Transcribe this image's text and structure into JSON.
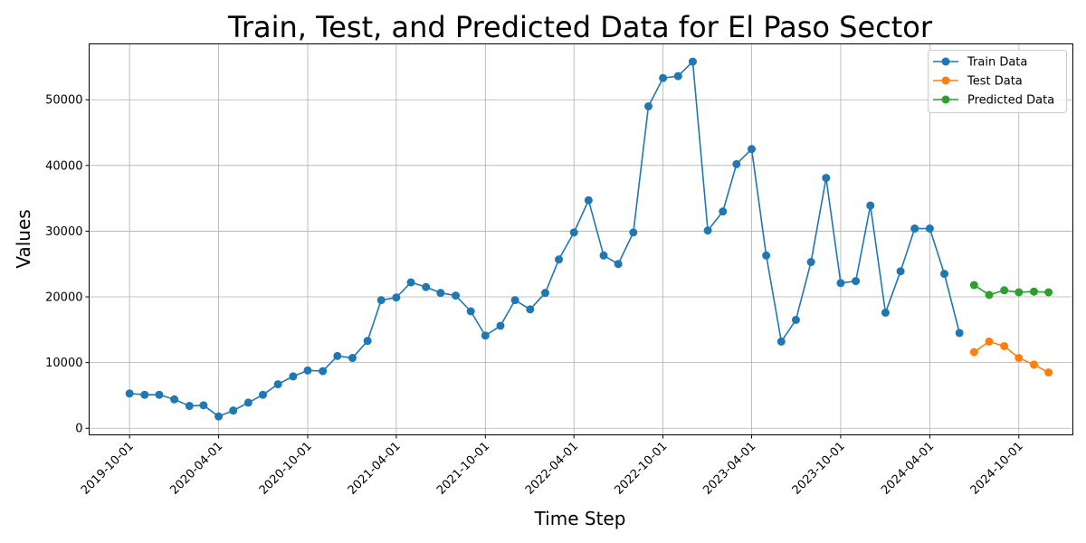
{
  "chart_data": {
    "type": "line",
    "title": "Train, Test, and Predicted Data for El Paso Sector",
    "xlabel": "Time Step",
    "ylabel": "Values",
    "x_tick_labels": [
      "2019-10-01",
      "2020-04-01",
      "2020-10-01",
      "2021-04-01",
      "2021-10-01",
      "2022-04-01",
      "2022-10-01",
      "2023-04-01",
      "2023-10-01",
      "2024-04-01",
      "2024-10-01"
    ],
    "y_ticks": [
      0,
      10000,
      20000,
      30000,
      40000,
      50000
    ],
    "ylim": [
      -1000,
      58500
    ],
    "xlim": [
      "2019-07-10",
      "2025-01-20"
    ],
    "grid": true,
    "legend_position": "top-right",
    "series": [
      {
        "name": "Train Data",
        "color": "#1f77b4",
        "x": [
          "2019-10-01",
          "2019-11-01",
          "2019-12-01",
          "2020-01-01",
          "2020-02-01",
          "2020-03-01",
          "2020-04-01",
          "2020-05-01",
          "2020-06-01",
          "2020-07-01",
          "2020-08-01",
          "2020-09-01",
          "2020-10-01",
          "2020-11-01",
          "2020-12-01",
          "2021-01-01",
          "2021-02-01",
          "2021-03-01",
          "2021-04-01",
          "2021-05-01",
          "2021-06-01",
          "2021-07-01",
          "2021-08-01",
          "2021-09-01",
          "2021-10-01",
          "2021-11-01",
          "2021-12-01",
          "2022-01-01",
          "2022-02-01",
          "2022-03-01",
          "2022-04-01",
          "2022-05-01",
          "2022-06-01",
          "2022-07-01",
          "2022-08-01",
          "2022-09-01",
          "2022-10-01",
          "2022-11-01",
          "2022-12-01",
          "2023-01-01",
          "2023-02-01",
          "2023-03-01",
          "2023-04-01",
          "2023-05-01",
          "2023-06-01",
          "2023-07-01",
          "2023-08-01",
          "2023-09-01",
          "2023-10-01",
          "2023-11-01",
          "2023-12-01",
          "2024-01-01",
          "2024-02-01",
          "2024-03-01",
          "2024-04-01",
          "2024-05-01",
          "2024-06-01"
        ],
        "values": [
          5300,
          5100,
          5100,
          4400,
          3400,
          3500,
          1800,
          2700,
          3900,
          5100,
          6700,
          7900,
          8800,
          8700,
          11000,
          10700,
          13300,
          19500,
          19900,
          22200,
          21500,
          20600,
          20200,
          17800,
          14100,
          15600,
          19500,
          18100,
          20600,
          25700,
          29800,
          34700,
          26300,
          25000,
          29800,
          49000,
          53300,
          53600,
          55800,
          30100,
          33000,
          40200,
          42500,
          26300,
          13200,
          16500,
          25300,
          38100,
          22100,
          22400,
          33900,
          17600,
          23900,
          30400,
          30400,
          23500,
          14500
        ]
      },
      {
        "name": "Test Data",
        "color": "#ff7f0e",
        "x": [
          "2024-07-01",
          "2024-08-01",
          "2024-09-01",
          "2024-10-01",
          "2024-11-01",
          "2024-12-01"
        ],
        "values": [
          11600,
          13200,
          12500,
          10700,
          9700,
          8500
        ]
      },
      {
        "name": "Predicted Data",
        "color": "#2ca02c",
        "x": [
          "2024-07-01",
          "2024-08-01",
          "2024-09-01",
          "2024-10-01",
          "2024-11-01",
          "2024-12-01"
        ],
        "values": [
          21800,
          20300,
          21000,
          20700,
          20800,
          20700
        ]
      }
    ]
  }
}
